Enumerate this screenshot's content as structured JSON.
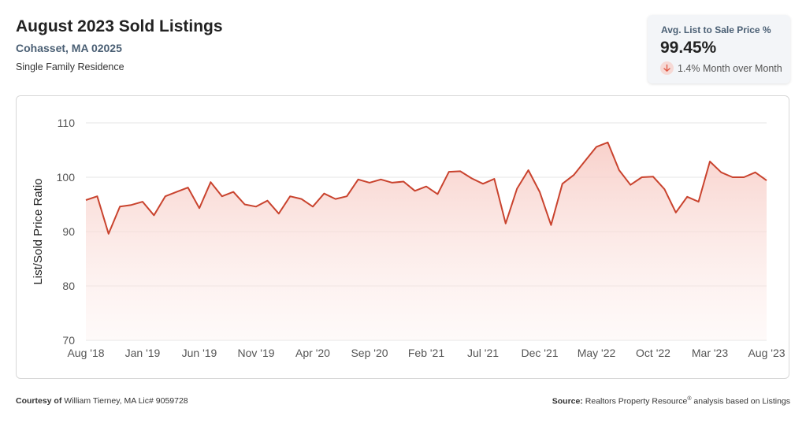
{
  "header": {
    "title": "August 2023 Sold Listings",
    "location": "Cohasset, MA 02025",
    "property_type": "Single Family Residence"
  },
  "kpi": {
    "label": "Avg. List to Sale Price %",
    "value": "99.45%",
    "change": "1.4% Month over Month",
    "change_direction": "down",
    "icon": "arrow-down-icon",
    "accent_color": "#e05a47"
  },
  "footer": {
    "courtesy_label": "Courtesy of",
    "courtesy_text": "William Tierney, MA Lic# 9059728",
    "source_label": "Source:",
    "source_text_a": "Realtors Property Resource",
    "source_mark": "®",
    "source_text_b": " analysis based on Listings"
  },
  "chart_data": {
    "type": "area",
    "ylabel": "List/Sold Price Ratio",
    "ylim": [
      70,
      110
    ],
    "yticks": [
      70,
      80,
      90,
      100,
      110
    ],
    "grid": true,
    "line_color": "#c9432e",
    "fill_color": "#fbe2de",
    "x_tick_labels": [
      "Aug '18",
      "Jan '19",
      "Jun '19",
      "Nov '19",
      "Apr '20",
      "Sep '20",
      "Feb '21",
      "Jul '21",
      "Dec '21",
      "May '22",
      "Oct '22",
      "Mar '23",
      "Aug '23"
    ],
    "x": [
      "Aug '18",
      "Sep '18",
      "Oct '18",
      "Nov '18",
      "Dec '18",
      "Jan '19",
      "Feb '19",
      "Mar '19",
      "Apr '19",
      "May '19",
      "Jun '19",
      "Jul '19",
      "Aug '19",
      "Sep '19",
      "Oct '19",
      "Nov '19",
      "Dec '19",
      "Jan '20",
      "Feb '20",
      "Mar '20",
      "Apr '20",
      "May '20",
      "Jun '20",
      "Jul '20",
      "Aug '20",
      "Sep '20",
      "Oct '20",
      "Nov '20",
      "Dec '20",
      "Jan '21",
      "Feb '21",
      "Mar '21",
      "Apr '21",
      "May '21",
      "Jun '21",
      "Jul '21",
      "Aug '21",
      "Sep '21",
      "Oct '21",
      "Nov '21",
      "Dec '21",
      "Jan '22",
      "Feb '22",
      "Mar '22",
      "Apr '22",
      "May '22",
      "Jun '22",
      "Jul '22",
      "Aug '22",
      "Sep '22",
      "Oct '22",
      "Nov '22",
      "Dec '22",
      "Jan '23",
      "Feb '23",
      "Mar '23",
      "Apr '23",
      "May '23",
      "Jun '23",
      "Jul '23",
      "Aug '23"
    ],
    "series": [
      {
        "values": [
          95.8,
          96.5,
          89.6,
          94.6,
          94.9,
          95.5,
          93.0,
          96.5,
          97.3,
          98.1,
          94.3,
          99.1,
          96.5,
          97.3,
          95.0,
          94.6,
          95.7,
          93.3,
          96.5,
          96.0,
          94.6,
          97.0,
          96.0,
          96.5,
          99.6,
          99.0,
          99.6,
          99.0,
          99.2,
          97.5,
          98.3,
          96.9,
          101.0,
          101.1,
          99.8,
          98.8,
          99.7,
          91.5,
          97.9,
          101.3,
          97.3,
          91.2,
          98.8,
          100.4,
          103.0,
          105.6,
          106.4,
          101.3,
          98.6,
          100.0,
          100.1,
          97.8,
          93.5,
          96.4,
          95.5,
          102.9,
          100.9,
          100.0,
          100.0,
          100.9,
          99.4
        ]
      }
    ]
  }
}
